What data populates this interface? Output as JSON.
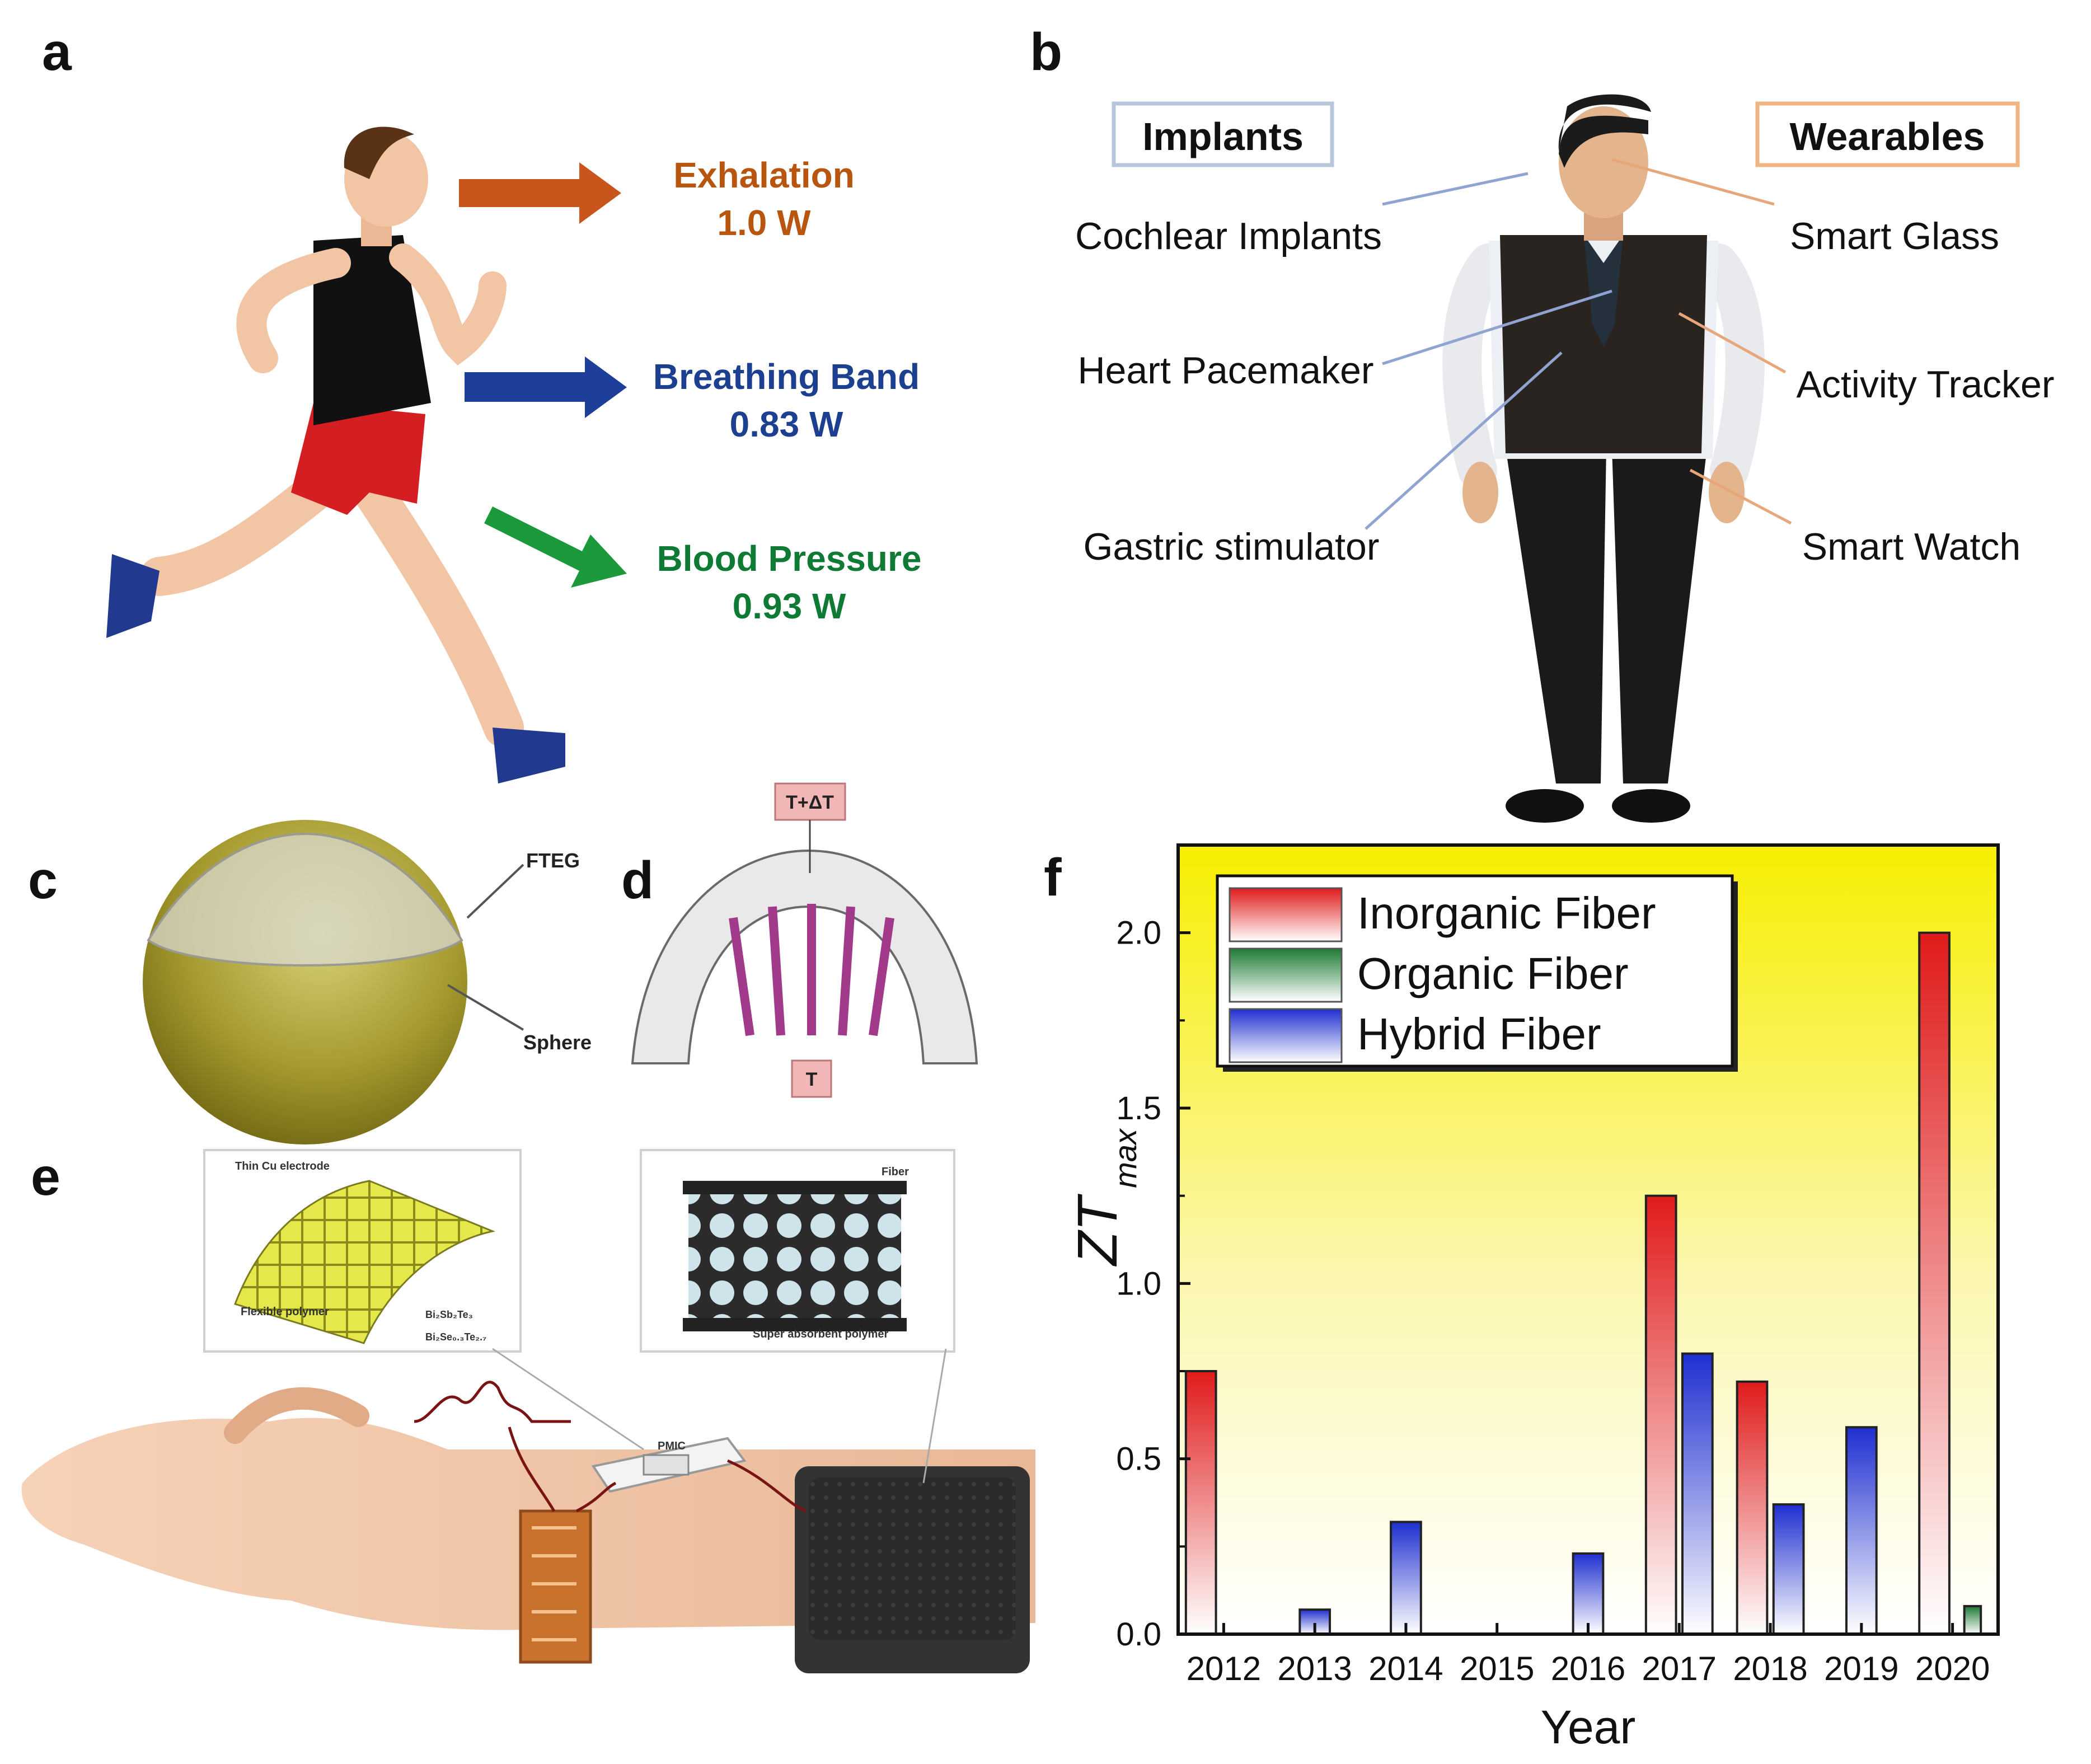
{
  "panels": {
    "a": {
      "letter": "a",
      "items": [
        {
          "label": "Exhalation",
          "value": "1.0 W",
          "color": "#b8550f"
        },
        {
          "label": "Breathing Band",
          "value": "0.83 W",
          "color": "#1d3f8f"
        },
        {
          "label": "Blood Pressure",
          "value": "0.93 W",
          "color": "#0f7a34"
        }
      ]
    },
    "b": {
      "letter": "b",
      "implants_title": "Implants",
      "wearables_title": "Wearables",
      "implants": [
        "Cochlear Implants",
        "Heart Pacemaker",
        "Gastric stimulator"
      ],
      "wearables": [
        "Smart Glass",
        "Activity Tracker",
        "Smart Watch"
      ]
    },
    "c": {
      "letter": "c",
      "ftegLabel": "FTEG",
      "sphereLabel": "Sphere"
    },
    "d": {
      "letter": "d",
      "topLabel": "T+ΔT",
      "bottomLabel": "T"
    },
    "e": {
      "letter": "e",
      "inset1": [
        "Thin Cu electrode",
        "Flexible polymer",
        "Bi₂Sb₂Te₃",
        "Bi₂Se₀.₃Te₂.₇"
      ],
      "inset2": [
        "Fiber",
        "Super absorbent polymer"
      ],
      "pmic": "PMIC"
    },
    "f": {
      "letter": "f"
    }
  },
  "colors": {
    "inorganic": "#e01b1b",
    "organic": "#1e7a35",
    "hybrid": "#1f2fd0",
    "chartBg": "#f5ec00"
  },
  "chart_data": {
    "type": "bar",
    "title": "",
    "xlabel": "Year",
    "ylabel_main": "ZT",
    "ylabel_sub": "max",
    "categories": [
      "2012",
      "2013",
      "2014",
      "2015",
      "2016",
      "2017",
      "2018",
      "2019",
      "2020"
    ],
    "ylim": [
      0,
      2.25
    ],
    "yticks": [
      "0.0",
      "0.5",
      "1.0",
      "1.5",
      "2.0"
    ],
    "legend_position": "top-left",
    "series": [
      {
        "name": "Inorganic Fiber",
        "key": "inorganic",
        "values": [
          0.75,
          null,
          null,
          null,
          null,
          1.25,
          0.72,
          null,
          2.0
        ]
      },
      {
        "name": "Organic Fiber",
        "key": "organic",
        "values": [
          null,
          null,
          null,
          null,
          null,
          null,
          null,
          null,
          0.08
        ]
      },
      {
        "name": "Hybrid Fiber",
        "key": "hybrid",
        "values": [
          null,
          0.07,
          0.32,
          null,
          0.23,
          0.8,
          0.37,
          0.59,
          null
        ]
      }
    ]
  }
}
